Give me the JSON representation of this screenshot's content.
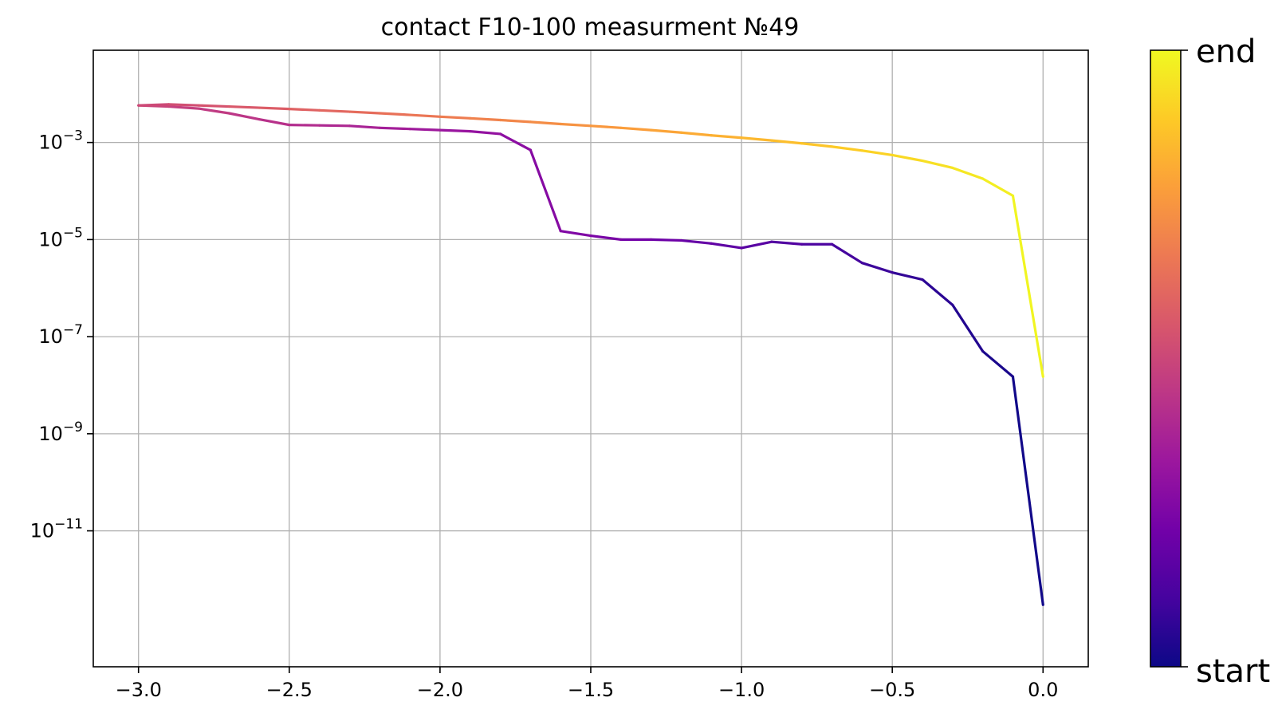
{
  "chart_data": {
    "type": "line",
    "title": "contact F10-100 measurment №49",
    "xlabel": "",
    "ylabel": "",
    "xlim": [
      -3.15,
      0.15
    ],
    "ylim_log10": [
      -13.8,
      -1.1
    ],
    "y_scale": "log",
    "grid": true,
    "x_ticks": [
      -3.0,
      -2.5,
      -2.0,
      -1.5,
      -1.0,
      -0.5,
      0.0
    ],
    "x_tick_labels": [
      "−3.0",
      "−2.5",
      "−2.0",
      "−1.5",
      "−1.0",
      "−0.5",
      "0.0"
    ],
    "y_ticks": [
      {
        "base": "10",
        "exp": "−3",
        "value": 0.001
      },
      {
        "base": "10",
        "exp": "−5",
        "value": 1e-05
      },
      {
        "base": "10",
        "exp": "−7",
        "value": 1e-07
      },
      {
        "base": "10",
        "exp": "−9",
        "value": 1e-09
      },
      {
        "base": "10",
        "exp": "−11",
        "value": 1e-11
      }
    ],
    "colorbar": {
      "colormap": "plasma",
      "top_label": "end",
      "bottom_label": "start",
      "colors": [
        "#0d0887",
        "#46039f",
        "#7201a8",
        "#9c179e",
        "#bd3786",
        "#d8576b",
        "#ed7953",
        "#fb9f3a",
        "#fdca26",
        "#f0f921"
      ]
    },
    "series": [
      {
        "x": [
          0.0,
          -0.1,
          -0.2,
          -0.3,
          -0.4,
          -0.5,
          -0.6,
          -0.7,
          -0.8,
          -0.9,
          -1.0,
          -1.1,
          -1.2,
          -1.3,
          -1.4,
          -1.5,
          -1.6,
          -1.7,
          -1.8,
          -1.9,
          -2.0,
          -2.1,
          -2.2,
          -2.3,
          -2.4,
          -2.5,
          -2.6,
          -2.7,
          -2.8,
          -2.9,
          -3.0,
          -2.9,
          -2.8,
          -2.7,
          -2.6,
          -2.5,
          -2.4,
          -2.3,
          -2.2,
          -2.1,
          -2.0,
          -1.9,
          -1.8,
          -1.7,
          -1.6,
          -1.5,
          -1.4,
          -1.3,
          -1.2,
          -1.1,
          -1.0,
          -0.9,
          -0.8,
          -0.7,
          -0.6,
          -0.5,
          -0.4,
          -0.3,
          -0.2,
          -0.1,
          0.0
        ],
        "y": [
          3e-13,
          1.5e-08,
          5e-08,
          4.5e-07,
          1.5e-06,
          2.1e-06,
          3.3e-06,
          8e-06,
          8e-06,
          9e-06,
          6.7e-06,
          8.3e-06,
          9.6e-06,
          1e-05,
          1e-05,
          1.2e-05,
          1.5e-05,
          0.0007,
          0.0015,
          0.0017,
          0.0018,
          0.0019,
          0.002,
          0.0022,
          0.00225,
          0.0023,
          0.003,
          0.004,
          0.005,
          0.0055,
          0.0058,
          0.0061,
          0.0058,
          0.0055,
          0.0052,
          0.0049,
          0.0046,
          0.0043,
          0.004,
          0.0037,
          0.0034,
          0.00315,
          0.0029,
          0.00265,
          0.0024,
          0.0022,
          0.002,
          0.0018,
          0.0016,
          0.0014,
          0.00125,
          0.0011,
          0.00096,
          0.00082,
          0.00068,
          0.00055,
          0.00042,
          0.0003,
          0.00018,
          8e-05,
          1.5e-08
        ]
      }
    ]
  }
}
